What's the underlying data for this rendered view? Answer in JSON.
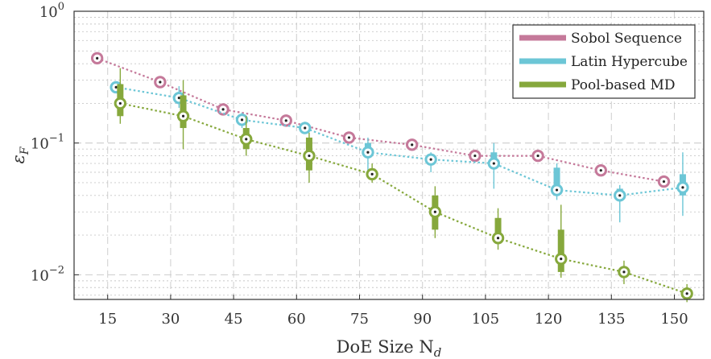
{
  "chart_data": {
    "type": "box",
    "xlabel": "DoE Size N",
    "xlabel_subscript": "d",
    "ylabel": "ε",
    "ylabel_subscript": "F",
    "yscale": "log",
    "ylim": [
      0.0065,
      1
    ],
    "xlim": [
      7,
      157
    ],
    "x_ticks": [
      "15",
      "30",
      "45",
      "60",
      "75",
      "90",
      "105",
      "120",
      "135",
      "150"
    ],
    "x_tick_values": [
      15,
      30,
      45,
      60,
      75,
      90,
      105,
      120,
      135,
      150
    ],
    "y_ticks": [
      {
        "value": 1,
        "base": "10",
        "exp": "0"
      },
      {
        "value": 0.1,
        "base": "10",
        "exp": "−1"
      },
      {
        "value": 0.01,
        "base": "10",
        "exp": "−2"
      }
    ],
    "grid": true,
    "legend_position": "top-right",
    "series": [
      {
        "name": "Sobol Sequence",
        "color": "#c5799a",
        "x": [
          12.5,
          27.5,
          42.5,
          57.5,
          72.5,
          87.5,
          102.5,
          117.5,
          132.5,
          147.5
        ],
        "median": [
          0.44,
          0.29,
          0.18,
          0.148,
          0.11,
          0.097,
          0.08,
          0.08,
          0.062,
          0.051
        ],
        "q1": [
          0.43,
          0.283,
          0.176,
          0.145,
          0.107,
          0.095,
          0.078,
          0.078,
          0.061,
          0.05
        ],
        "q3": [
          0.45,
          0.297,
          0.184,
          0.151,
          0.113,
          0.099,
          0.082,
          0.082,
          0.063,
          0.052
        ],
        "whisker_low": [
          0.42,
          0.278,
          0.172,
          0.142,
          0.104,
          0.093,
          0.076,
          0.076,
          0.06,
          0.049
        ],
        "whisker_high": [
          0.46,
          0.302,
          0.188,
          0.154,
          0.116,
          0.101,
          0.084,
          0.084,
          0.064,
          0.053
        ]
      },
      {
        "name": "Latin Hypercube",
        "color": "#6cc6d6",
        "x": [
          17,
          32,
          47,
          62,
          77,
          92,
          107,
          122,
          137,
          152
        ],
        "median": [
          0.265,
          0.22,
          0.15,
          0.13,
          0.085,
          0.075,
          0.07,
          0.044,
          0.04,
          0.046
        ],
        "q1": [
          0.255,
          0.2,
          0.14,
          0.125,
          0.08,
          0.07,
          0.065,
          0.041,
          0.037,
          0.04
        ],
        "q3": [
          0.275,
          0.24,
          0.16,
          0.135,
          0.1,
          0.08,
          0.085,
          0.065,
          0.045,
          0.058
        ],
        "whisker_low": [
          0.245,
          0.185,
          0.13,
          0.12,
          0.055,
          0.06,
          0.045,
          0.037,
          0.025,
          0.028
        ],
        "whisker_high": [
          0.285,
          0.27,
          0.17,
          0.145,
          0.11,
          0.085,
          0.1,
          0.07,
          0.048,
          0.085
        ]
      },
      {
        "name": "Pool-based MD",
        "color": "#86a83c",
        "x": [
          18,
          33,
          48,
          63,
          78,
          93,
          108,
          123,
          138,
          153
        ],
        "median": [
          0.2,
          0.16,
          0.107,
          0.08,
          0.058,
          0.03,
          0.019,
          0.0132,
          0.0105,
          0.0072
        ],
        "q1": [
          0.16,
          0.13,
          0.09,
          0.062,
          0.054,
          0.022,
          0.0175,
          0.0105,
          0.0098,
          0.0066
        ],
        "q3": [
          0.28,
          0.23,
          0.13,
          0.11,
          0.064,
          0.04,
          0.027,
          0.022,
          0.0115,
          0.0078
        ],
        "whisker_low": [
          0.14,
          0.09,
          0.08,
          0.05,
          0.05,
          0.019,
          0.0155,
          0.0095,
          0.0085,
          0.0062
        ],
        "whisker_high": [
          0.37,
          0.3,
          0.16,
          0.12,
          0.07,
          0.047,
          0.032,
          0.034,
          0.0128,
          0.0085
        ]
      }
    ]
  }
}
